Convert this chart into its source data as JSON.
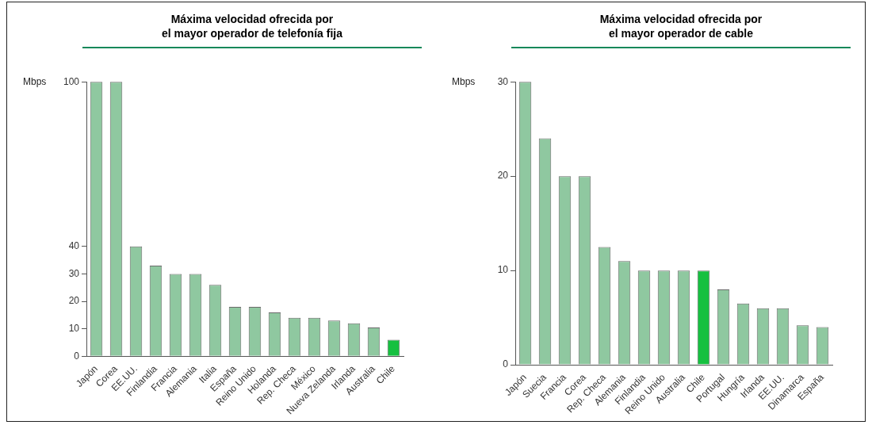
{
  "chart_data": [
    {
      "type": "bar",
      "title": "Máxima velocidad ofrecida por\nel mayor operador de telefonía fija",
      "ylabel": "Mbps",
      "categories": [
        "Japón",
        "Corea",
        "EE.UU.",
        "Finlandia",
        "Francia",
        "Alemania",
        "Italia",
        "España",
        "Reino Unido",
        "Holanda",
        "Rep. Checa",
        "México",
        "Nueva Zelanda",
        "Irlanda",
        "Australia",
        "Chile"
      ],
      "values": [
        100,
        100,
        40,
        33,
        30,
        30,
        26,
        18,
        18,
        16,
        14,
        14,
        13,
        12,
        10.5,
        6
      ],
      "colors": [
        "#8fc8a0",
        "#8fc8a0",
        "#8fc8a0",
        "#8fc8a0",
        "#8fc8a0",
        "#8fc8a0",
        "#8fc8a0",
        "#8fc8a0",
        "#8fc8a0",
        "#8fc8a0",
        "#8fc8a0",
        "#8fc8a0",
        "#8fc8a0",
        "#8fc8a0",
        "#8fc8a0",
        "#16c040"
      ],
      "ylim": [
        0,
        100
      ],
      "yticks": [
        0,
        10,
        20,
        30,
        40,
        100
      ],
      "grid": false,
      "legend": false
    },
    {
      "type": "bar",
      "title": "Máxima velocidad ofrecida por\nel mayor operador de cable",
      "ylabel": "Mbps",
      "categories": [
        "Japón",
        "Suecia",
        "Francia",
        "Corea",
        "Rep. Checa",
        "Alemania",
        "Finlandia",
        "Reino Unido",
        "Australia",
        "Chile",
        "Portugal",
        "Hungría",
        "Irlanda",
        "EE.UU.",
        "Dinamarca",
        "España"
      ],
      "values": [
        30,
        24,
        20,
        20,
        12.5,
        11,
        10,
        10,
        10,
        10,
        8,
        6.5,
        6,
        6,
        4.2,
        4
      ],
      "colors": [
        "#8fc8a0",
        "#8fc8a0",
        "#8fc8a0",
        "#8fc8a0",
        "#8fc8a0",
        "#8fc8a0",
        "#8fc8a0",
        "#8fc8a0",
        "#8fc8a0",
        "#16c040",
        "#8fc8a0",
        "#8fc8a0",
        "#8fc8a0",
        "#8fc8a0",
        "#8fc8a0",
        "#8fc8a0"
      ],
      "ylim": [
        0,
        30
      ],
      "yticks": [
        0,
        10,
        20,
        30
      ],
      "grid": false,
      "legend": false
    }
  ]
}
